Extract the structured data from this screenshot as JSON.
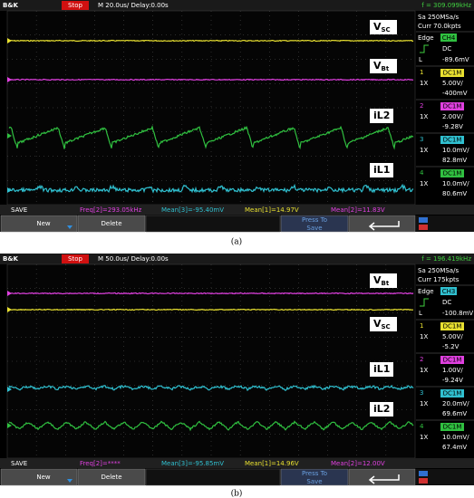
{
  "panels": [
    {
      "header": {
        "brand": "B&K",
        "status": "Stop",
        "timebase": "M 20.0us/ Delay:0.00s",
        "freq": "f = 309.099kHz"
      },
      "acquisition": {
        "rate": "Sa 250MSa/s",
        "memory": "Curr 70.0kpts",
        "trigger_mode": "Edge",
        "trigger_source": "CH4",
        "trigger_color": "#30c040",
        "coupling": "DC",
        "level_label": "L",
        "level": "-89.6mV"
      },
      "channels": [
        {
          "number": "1",
          "probe": "1X",
          "coupling": "DC1M",
          "scale": "5.00V/",
          "offset": "-400mV",
          "color": "#e8e030"
        },
        {
          "number": "2",
          "probe": "1X",
          "coupling": "DC1M",
          "scale": "2.00V/",
          "offset": "-9.28V",
          "color": "#e040e0"
        },
        {
          "number": "3",
          "probe": "1X",
          "coupling": "DC1M",
          "scale": "10.0mV/",
          "offset": "82.8mV",
          "color": "#30c0d0"
        },
        {
          "number": "4",
          "probe": "1X",
          "coupling": "DC1M",
          "scale": "10.0mV/",
          "offset": "80.6mV",
          "color": "#30c040"
        }
      ],
      "measurements": {
        "save": "SAVE",
        "items": [
          {
            "text": "Freq[2]=293.05kHz",
            "color": "#e040e0"
          },
          {
            "text": "Mean[3]=-95.40mV",
            "color": "#30c0d0"
          },
          {
            "text": "Mean[1]=14.97V",
            "color": "#e8e030"
          },
          {
            "text": "Mean[2]=11.83V",
            "color": "#e040e0"
          }
        ]
      },
      "buttons": {
        "new": "New",
        "delete": "Delete",
        "press": [
          "Press To",
          "Save"
        ]
      },
      "traces": [
        {
          "main": "V",
          "sub": "SC",
          "color": "#e8e030"
        },
        {
          "main": "V",
          "sub": "Bt",
          "color": "#e040e0"
        },
        {
          "main": "iL2",
          "color": "#30c040"
        },
        {
          "main": "iL1",
          "color": "#30c0d0"
        }
      ],
      "caption": "(a)"
    },
    {
      "header": {
        "brand": "B&K",
        "status": "Stop",
        "timebase": "M 50.0us/ Delay:0.00s",
        "freq": "f = 196.419kHz"
      },
      "acquisition": {
        "rate": "Sa 250MSa/s",
        "memory": "Curr 175kpts",
        "trigger_mode": "Edge",
        "trigger_source": "CH3",
        "trigger_color": "#30c0d0",
        "coupling": "DC",
        "level_label": "L",
        "level": "-100.8mV"
      },
      "channels": [
        {
          "number": "1",
          "probe": "1X",
          "coupling": "DC1M",
          "scale": "5.00V/",
          "offset": "-5.2V",
          "color": "#e8e030"
        },
        {
          "number": "2",
          "probe": "1X",
          "coupling": "DC1M",
          "scale": "1.00V/",
          "offset": "-9.24V",
          "color": "#e040e0"
        },
        {
          "number": "3",
          "probe": "1X",
          "coupling": "DC1M",
          "scale": "20.0mV/",
          "offset": "69.6mV",
          "color": "#30c0d0"
        },
        {
          "number": "4",
          "probe": "1X",
          "coupling": "DC1M",
          "scale": "10.0mV/",
          "offset": "67.4mV",
          "color": "#30c040"
        }
      ],
      "measurements": {
        "save": "SAVE",
        "items": [
          {
            "text": "Freq[2]=****",
            "color": "#e040e0"
          },
          {
            "text": "Mean[3]=-95.85mV",
            "color": "#30c0d0"
          },
          {
            "text": "Mean[1]=14.96V",
            "color": "#e8e030"
          },
          {
            "text": "Mean[2]=12.00V",
            "color": "#e040e0"
          }
        ]
      },
      "buttons": {
        "new": "New",
        "delete": "Delete",
        "press": [
          "Press To",
          "Save"
        ]
      },
      "traces": [
        {
          "main": "V",
          "sub": "Bt",
          "color": "#e040e0"
        },
        {
          "main": "V",
          "sub": "SC",
          "color": "#e8e030"
        },
        {
          "main": "iL1",
          "color": "#30c0d0"
        },
        {
          "main": "iL2",
          "color": "#30c040"
        }
      ],
      "caption": "(b)"
    }
  ]
}
